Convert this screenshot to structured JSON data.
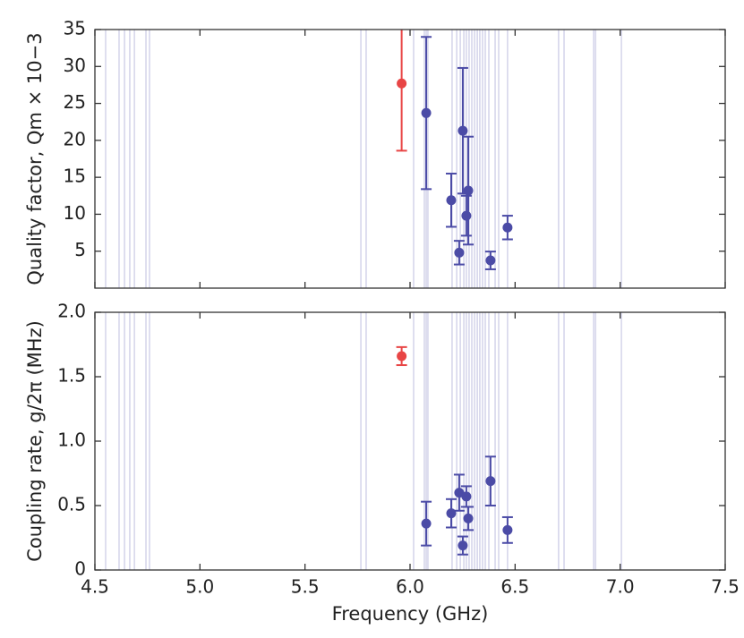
{
  "chart_data": [
    {
      "type": "scatter",
      "ylabel": "Quality factor, Qm × 10−3",
      "xlim": [
        4.5,
        7.5
      ],
      "ylim": [
        0,
        35
      ],
      "yticks": [
        5,
        10,
        15,
        20,
        25,
        30,
        35
      ],
      "vline_color": "#d4d4ea",
      "vlines": [
        4.551,
        4.615,
        4.641,
        4.666,
        4.688,
        4.743,
        4.76,
        5.766,
        5.791,
        6.017,
        6.068,
        6.077,
        6.085,
        6.2,
        6.222,
        6.239,
        6.256,
        6.268,
        6.281,
        6.294,
        6.307,
        6.32,
        6.332,
        6.345,
        6.358,
        6.375,
        6.405,
        6.422,
        6.464,
        6.707,
        6.733,
        6.874,
        6.883,
        7.006
      ],
      "series": [
        {
          "color": "#e84545",
          "x": [
            5.96
          ],
          "values": [
            27.7
          ],
          "errors": [
            9.1
          ]
        },
        {
          "color": "#4b4ba6",
          "x": [
            6.077,
            6.196,
            6.234,
            6.251,
            6.268,
            6.277,
            6.383,
            6.464
          ],
          "values": [
            23.7,
            11.9,
            4.8,
            21.3,
            9.8,
            13.2,
            3.75,
            8.2
          ],
          "errors": [
            10.3,
            3.6,
            1.6,
            8.5,
            2.7,
            7.3,
            1.2,
            1.6
          ]
        }
      ]
    },
    {
      "type": "scatter",
      "ylabel": "Coupling rate, g/2π (MHz)",
      "xlabel": "Frequency (GHz)",
      "xlim": [
        4.5,
        7.5
      ],
      "xticks": [
        4.5,
        {
          "value": 5,
          "label": "5.0"
        },
        5.5,
        {
          "value": 6,
          "label": "6.0"
        },
        6.5,
        {
          "value": 7,
          "label": "7.0"
        },
        7.5
      ],
      "ylim": [
        0,
        2
      ],
      "yticks": [
        0,
        0.5,
        {
          "value": 1,
          "label": "1.0"
        },
        1.5,
        {
          "value": 2,
          "label": "2.0"
        }
      ],
      "series": [
        {
          "color": "#e84545",
          "x": [
            5.96
          ],
          "values": [
            1.66
          ],
          "errors": [
            0.07
          ]
        },
        {
          "color": "#4b4ba6",
          "x": [
            6.077,
            6.196,
            6.234,
            6.251,
            6.268,
            6.277,
            6.383,
            6.464
          ],
          "values": [
            0.36,
            0.44,
            0.6,
            0.19,
            0.57,
            0.4,
            0.69,
            0.31
          ],
          "errors": [
            0.17,
            0.11,
            0.14,
            0.07,
            0.08,
            0.09,
            0.19,
            0.1
          ]
        }
      ]
    }
  ]
}
